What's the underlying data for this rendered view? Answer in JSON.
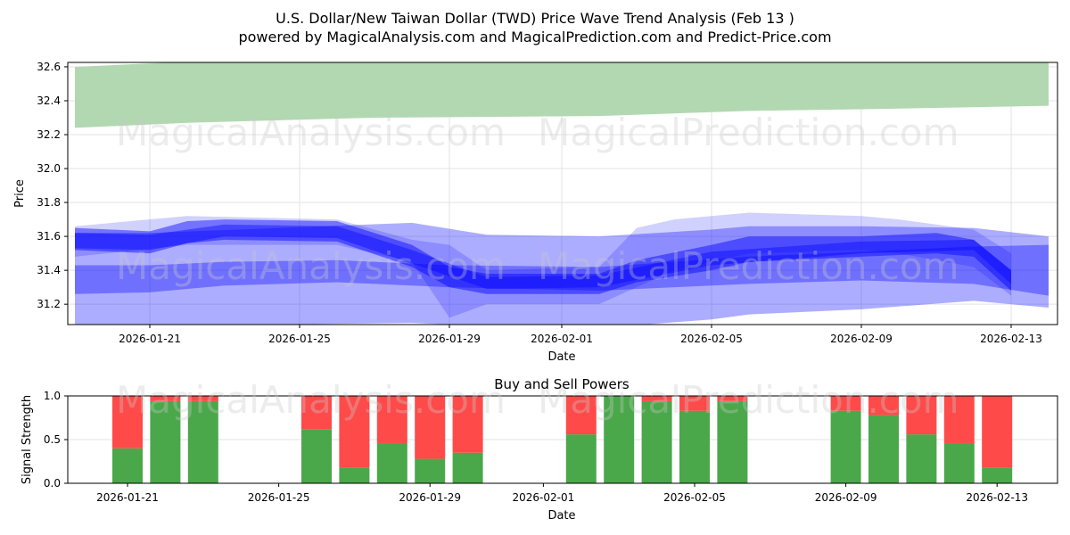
{
  "title_line1": "U.S. Dollar/New Taiwan Dollar (TWD) Price Wave Trend Analysis (Feb 13 )",
  "title_line2": "powered by MagicalAnalysis.com and MagicalPrediction.com and Predict-Price.com",
  "watermarks": [
    "MagicalAnalysis.com",
    "MagicalPrediction.com"
  ],
  "chart_data": [
    {
      "type": "area",
      "title": "",
      "xlabel": "Date",
      "ylabel": "Price",
      "ylim": [
        31.08,
        32.626
      ],
      "xlim": [
        "2026-01-18.8",
        "2026-02-14.2"
      ],
      "yticks": [
        "31.2",
        "31.4",
        "31.6",
        "31.8",
        "32.0",
        "32.2",
        "32.4",
        "32.6"
      ],
      "xticks": [
        "2026-01-21",
        "2026-01-25",
        "2026-01-29",
        "2026-02-01",
        "2026-02-05",
        "2026-02-09",
        "2026-02-13"
      ],
      "grid": true,
      "green_band": {
        "color": "#b2d8b2",
        "points": [
          [
            "2026-01-19.2",
            32.24,
            32.6
          ],
          [
            "2026-01-22",
            32.27,
            32.63
          ],
          [
            "2026-01-27",
            32.3,
            32.63
          ],
          [
            "2026-02-02",
            32.31,
            32.63
          ],
          [
            "2026-02-06",
            32.34,
            32.63
          ],
          [
            "2026-02-09",
            32.35,
            32.63
          ],
          [
            "2026-02-14",
            32.37,
            32.63
          ]
        ]
      },
      "blue_bands": [
        {
          "opacity": 0.32,
          "points": [
            [
              "2026-01-19.2",
              31.06,
              31.62
            ],
            [
              "2026-01-21",
              31.07,
              31.62
            ],
            [
              "2026-01-28",
              31.09,
              31.68
            ],
            [
              "2026-01-30",
              31.07,
              31.61
            ],
            [
              "2026-02-02",
              31.06,
              31.6
            ],
            [
              "2026-02-05",
              31.11,
              31.64
            ],
            [
              "2026-02-06",
              31.14,
              31.66
            ],
            [
              "2026-02-09",
              31.17,
              31.66
            ],
            [
              "2026-02-12",
              31.22,
              31.65
            ],
            [
              "2026-02-14",
              31.18,
              31.6
            ]
          ]
        },
        {
          "opacity": 0.35,
          "points": [
            [
              "2026-01-19.2",
              31.26,
              31.43
            ],
            [
              "2026-01-21",
              31.27,
              31.43
            ],
            [
              "2026-01-23",
              31.31,
              31.45
            ],
            [
              "2026-01-26",
              31.33,
              31.46
            ],
            [
              "2026-01-29",
              31.3,
              31.43
            ],
            [
              "2026-02-02",
              31.28,
              31.42
            ],
            [
              "2026-02-06",
              31.32,
              31.48
            ],
            [
              "2026-02-09",
              31.34,
              31.51
            ],
            [
              "2026-02-12",
              31.32,
              31.54
            ],
            [
              "2026-02-14",
              31.25,
              31.55
            ]
          ]
        },
        {
          "opacity": 0.18,
          "points": [
            [
              "2026-01-19.5",
              31.48,
              31.66
            ],
            [
              "2026-01-22",
              31.55,
              31.72
            ],
            [
              "2026-01-26",
              31.55,
              31.7
            ],
            [
              "2026-01-28",
              31.45,
              31.58
            ],
            [
              "2026-01-29",
              31.12,
              31.55
            ],
            [
              "2026-01-30",
              31.2,
              31.4
            ],
            [
              "2026-02-02",
              31.2,
              31.42
            ],
            [
              "2026-02-03",
              31.3,
              31.65
            ],
            [
              "2026-02-04",
              31.4,
              31.7
            ],
            [
              "2026-02-06",
              31.5,
              31.74
            ],
            [
              "2026-02-09",
              31.52,
              31.72
            ],
            [
              "2026-02-10",
              31.5,
              31.7
            ],
            [
              "2026-02-12",
              31.42,
              31.64
            ],
            [
              "2026-02-13",
              31.25,
              31.5
            ]
          ]
        },
        {
          "opacity": 0.45,
          "points": [
            [
              "2026-01-19.5",
              31.52,
              31.65
            ],
            [
              "2026-01-21",
              31.5,
              31.63
            ],
            [
              "2026-01-22",
              31.56,
              31.69
            ],
            [
              "2026-01-23",
              31.58,
              31.7
            ],
            [
              "2026-01-26",
              31.57,
              31.69
            ],
            [
              "2026-01-28",
              31.42,
              31.55
            ],
            [
              "2026-01-29",
              31.3,
              31.42
            ],
            [
              "2026-01-30",
              31.26,
              31.38
            ],
            [
              "2026-02-02",
              31.26,
              31.38
            ],
            [
              "2026-02-03",
              31.33,
              31.46
            ],
            [
              "2026-02-05",
              31.4,
              31.55
            ],
            [
              "2026-02-06",
              31.45,
              31.6
            ],
            [
              "2026-02-09",
              31.48,
              31.6
            ],
            [
              "2026-02-11",
              31.5,
              31.62
            ],
            [
              "2026-02-12",
              31.48,
              31.58
            ],
            [
              "2026-02-13",
              31.28,
              31.4
            ]
          ]
        },
        {
          "opacity": 0.4,
          "points": [
            [
              "2026-01-19.5",
              31.53,
              31.62
            ],
            [
              "2026-01-21",
              31.52,
              31.61
            ],
            [
              "2026-01-23",
              31.6,
              31.67
            ],
            [
              "2026-01-26",
              31.59,
              31.66
            ],
            [
              "2026-01-28",
              31.44,
              31.52
            ],
            [
              "2026-01-30",
              31.29,
              31.36
            ],
            [
              "2026-02-02",
              31.3,
              31.37
            ],
            [
              "2026-02-05",
              31.43,
              31.51
            ],
            [
              "2026-02-09",
              31.5,
              31.57
            ],
            [
              "2026-02-12",
              31.52,
              31.58
            ],
            [
              "2026-02-13",
              31.32,
              31.4
            ]
          ]
        }
      ]
    },
    {
      "type": "bar",
      "title": "Buy and Sell Powers",
      "xlabel": "Date",
      "ylabel": "Signal Strength",
      "ylim": [
        0,
        1
      ],
      "yticks": [
        "0.0",
        "0.5",
        "1.0"
      ],
      "xticks": [
        "2026-01-21",
        "2026-01-25",
        "2026-01-29",
        "2026-02-01",
        "2026-02-05",
        "2026-02-09",
        "2026-02-13"
      ],
      "buy_color": "#4aa84a",
      "sell_color": "#ff4a4a",
      "categories": [
        "2026-01-21",
        "2026-01-22",
        "2026-01-23",
        "2026-01-26",
        "2026-01-27",
        "2026-01-28",
        "2026-01-29",
        "2026-01-30",
        "2026-02-02",
        "2026-02-03",
        "2026-02-04",
        "2026-02-05",
        "2026-02-06",
        "2026-02-09",
        "2026-02-10",
        "2026-02-11",
        "2026-02-12",
        "2026-02-13"
      ],
      "series": [
        {
          "name": "Buy",
          "values": [
            0.4,
            0.94,
            0.94,
            0.62,
            0.18,
            0.46,
            0.28,
            0.35,
            0.56,
            1.0,
            0.94,
            0.83,
            0.94,
            0.83,
            0.78,
            0.56,
            0.46,
            0.18
          ]
        },
        {
          "name": "Sell",
          "values": [
            0.6,
            0.06,
            0.06,
            0.38,
            0.82,
            0.54,
            0.72,
            0.65,
            0.44,
            0.0,
            0.06,
            0.17,
            0.06,
            0.17,
            0.22,
            0.44,
            0.54,
            0.82
          ]
        }
      ]
    }
  ]
}
